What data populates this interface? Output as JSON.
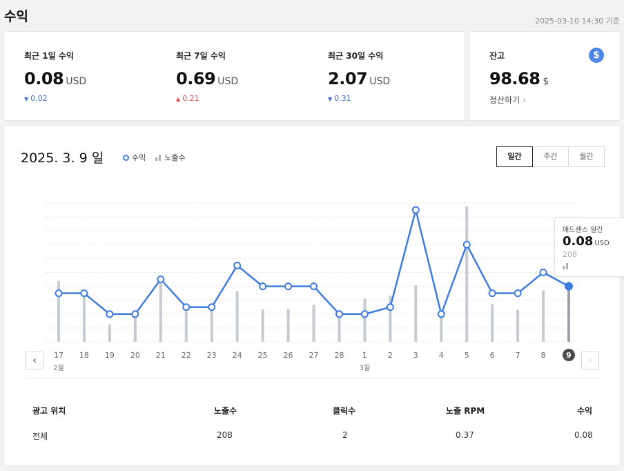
{
  "header": {
    "title": "수익",
    "as_of": "2025-03-10 14:30 기준"
  },
  "summary": [
    {
      "label": "최근 1일 수익",
      "value": "0.08",
      "unit": "USD",
      "change": "0.02",
      "direction": "down"
    },
    {
      "label": "최근 7일 수익",
      "value": "0.69",
      "unit": "USD",
      "change": "0.21",
      "direction": "up"
    },
    {
      "label": "최근 30일 수익",
      "value": "2.07",
      "unit": "USD",
      "change": "0.31",
      "direction": "down"
    }
  ],
  "balance": {
    "label": "잔고",
    "value": "98.68",
    "unit": "$",
    "payout_label": "정산하기",
    "icon": "dollar-icon"
  },
  "chart_header": {
    "date": "2025. 3. 9 일",
    "legend_revenue": "수익",
    "legend_impressions": "노출수",
    "tabs": [
      {
        "label": "일간",
        "active": true
      },
      {
        "label": "주간",
        "active": false
      },
      {
        "label": "월간",
        "active": false
      }
    ]
  },
  "chart_data": {
    "type": "line",
    "categories": [
      "17",
      "18",
      "19",
      "20",
      "21",
      "22",
      "23",
      "24",
      "25",
      "26",
      "27",
      "28",
      "1",
      "2",
      "3",
      "4",
      "5",
      "6",
      "7",
      "8",
      "9"
    ],
    "month_labels": [
      {
        "index": 0,
        "label": "2월"
      },
      {
        "index": 12,
        "label": "3월"
      }
    ],
    "series": [
      {
        "name": "수익",
        "kind": "line",
        "color": "#3d7be0",
        "values": [
          0.07,
          0.07,
          0.04,
          0.04,
          0.09,
          0.05,
          0.05,
          0.11,
          0.08,
          0.08,
          0.08,
          0.04,
          0.04,
          0.05,
          0.19,
          0.04,
          0.14,
          0.07,
          0.07,
          0.1,
          0.08
        ]
      },
      {
        "name": "노출수",
        "kind": "bar",
        "color": "#c6cbd1",
        "values": [
          210,
          165,
          60,
          100,
          210,
          105,
          130,
          175,
          112,
          114,
          128,
          88,
          150,
          160,
          195,
          100,
          468,
          130,
          110,
          178,
          208
        ]
      }
    ],
    "selected_index": 20,
    "grid": true
  },
  "tooltip": {
    "title": "애드센스 일간",
    "value": "0.08",
    "unit": "USD",
    "impressions": "208"
  },
  "table": {
    "headers": [
      "광고 위치",
      "노출수",
      "클릭수",
      "노출 RPM",
      "수익"
    ],
    "rows": [
      [
        "전체",
        "208",
        "2",
        "0.37",
        "0.08"
      ]
    ]
  }
}
